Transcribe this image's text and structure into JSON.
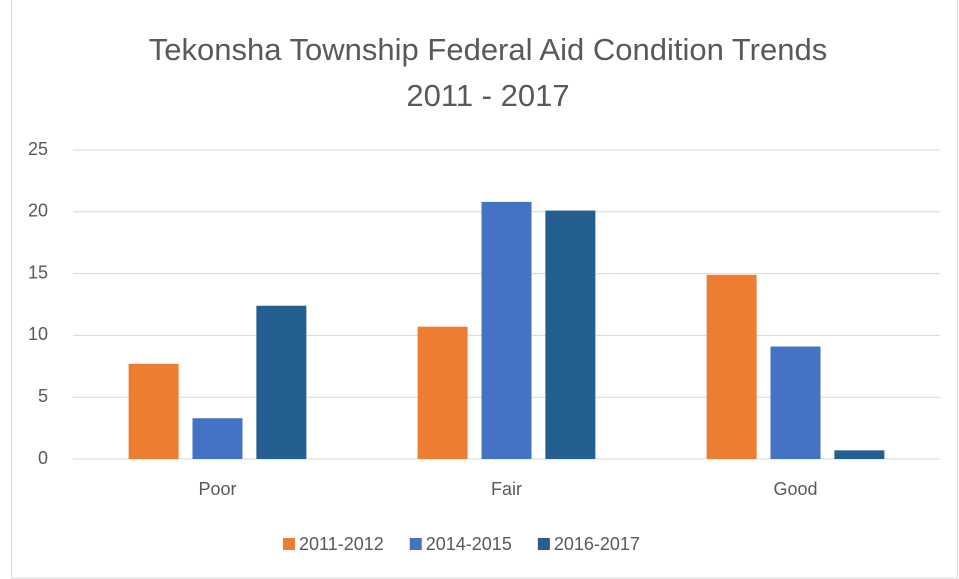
{
  "chart_data": {
    "type": "bar",
    "title": "Tekonsha Township Federal Aid Condition Trends",
    "subtitle": "2011 - 2017",
    "categories": [
      "Poor",
      "Fair",
      "Good"
    ],
    "series": [
      {
        "name": "2011-2012",
        "color": "#ed7d31",
        "values": [
          7.7,
          10.7,
          14.9
        ]
      },
      {
        "name": "2014-2015",
        "color": "#4472c4",
        "values": [
          3.3,
          20.8,
          9.1
        ]
      },
      {
        "name": "2016-2017",
        "color": "#255e91",
        "values": [
          12.4,
          20.1,
          0.7
        ]
      }
    ],
    "ylim": [
      0,
      25
    ],
    "yticks": [
      0,
      5,
      10,
      15,
      20,
      25
    ],
    "grid": true,
    "legend": "bottom"
  }
}
